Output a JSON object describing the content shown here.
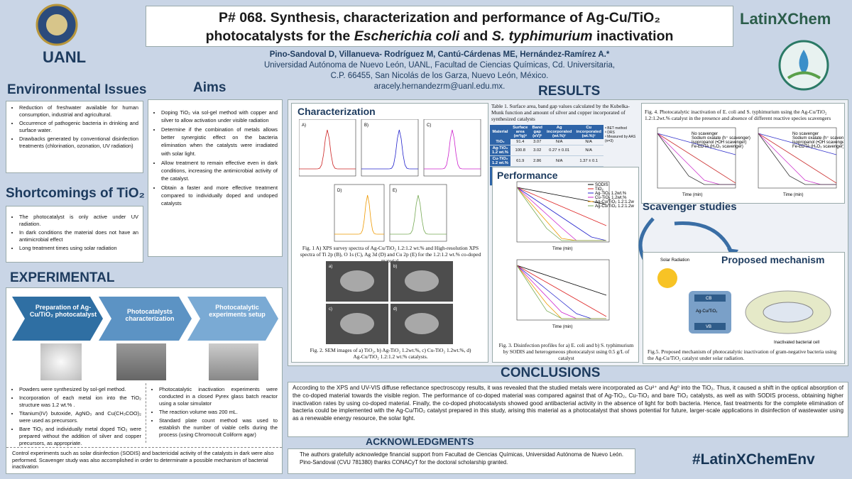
{
  "header": {
    "logo_left": "UANL",
    "title_line1": "P# 068. Synthesis, characterization and performance of Ag-Cu/TiO₂",
    "title_line2_a": "photocatalysts for the ",
    "title_line2_italic1": "Escherichia coli",
    "title_line2_b": " and ",
    "title_line2_italic2": "S. typhimurium",
    "title_line2_c": " inactivation",
    "authors": "Pino-Sandoval D, Villanueva- Rodríguez M, Cantú-Cárdenas ME, Hernández-Ramírez A.*",
    "affiliation_1": "Universidad Autónoma de Nuevo León, UANL, Facultad de Ciencias Químicas, Cd. Universitaria,",
    "affiliation_2": "C.P. 66455, San Nicolás de los Garza, Nuevo León, México.",
    "email": "aracely.hernandezrm@uanl.edu.mx.",
    "logo_right": "LatinXChem"
  },
  "environmental": {
    "heading": "Environmental Issues",
    "items": [
      "Reduction of freshwater available for human consumption, industrial and agricultural.",
      "Occurrence of pathogenic bacteria in drinking and surface water.",
      "Drawbacks generated by conventional disinfection treatments (chlorination, ozonation, UV radiation)"
    ]
  },
  "shortcomings": {
    "heading": "Shortcomings of TiO₂",
    "items": [
      "The photocatalyst is only active under UV radiation.",
      "In dark conditions the material does not have an antimicrobial effect",
      "Long treatment times using solar radiation"
    ]
  },
  "aims": {
    "heading": "Aims",
    "items": [
      "Doping TiO₂ via sol-gel method with copper and silver to allow activation under visible radiation",
      "Determine if the combination of metals allows better synergistic effect on the bacteria elimination when the catalysts were irradiated with solar light.",
      "Allow treatment to remain effective even in dark conditions, increasing the antimicrobial activity of the catalyst.",
      "Obtain a faster and more effective treatment compared to individually doped and undoped catalysts"
    ]
  },
  "experimental": {
    "heading": "EXPERIMENTAL",
    "steps": [
      "Preparation of Ag-Cu/TiO₂ photocatalyst",
      "Photocatalysts characterization",
      "Photocatalytic experiments setup"
    ],
    "left_items": [
      "Powders were synthesized by sol-gel method.",
      "Incorporation of each metal ion into the TiO₂ structure was 1.2 wt.% .",
      "Titanium(IV) butoxide, AgNO₃ and Cu(CH₃COO)₂ were used as precursors.",
      "Bare TiO₂ and individually metal doped TiO₂ were prepared without the addition of silver and copper precursors, as appropriate."
    ],
    "right_items": [
      "Photocatalytic inactivation experiments were conducted in a closed Pyrex glass batch reactor using a solar simulator",
      "The reaction volume was 200 mL.",
      "Standard plate count method was used to establish the number of viable cells during the process (using Chromocult Coliform agar)"
    ],
    "footer": "Control experiments such as solar disinfection (SODIS) and bactericidal activity of the catalysts in dark were also performed. Scavenger study was also accomplished in order to determinate a possible mechanism of bacterial inactivation"
  },
  "results": {
    "heading": "RESULTS",
    "characterization": "Characterization",
    "performance": "Performance",
    "scavenger": "Scavenger studies",
    "mechanism": "Proposed mechanism",
    "fig1_panels": [
      "A)",
      "B)",
      "C)",
      "D)",
      "E)"
    ],
    "fig1_caption": "Fig. 1  A) XPS survey spectra of Ag-Cu/TiO₂ 1.2:1.2 wt.% and High-resolution XPS spectra of Ti 2p (B), O 1s (C), Ag 3d (D) and Cu 2p (E) for the 1.2:1.2 wt.% co-doped material.",
    "fig2_panels": [
      "a)",
      "b)",
      "c)",
      "d)"
    ],
    "fig2_caption": "Fig. 2. SEM images of a) TiO₂, b) Ag-TiO₂ 1.2wt.%, c) Cu-TiO₂ 1.2wt.%, d) Ag-Cu/TiO₂ 1.2:1.2 wt.% catalysts.",
    "table": {
      "caption": "Table 1. Surface area, band gap values calculated by the Kubelka-Munk function and amount of silver and copper incorporated of synthesized catalysts",
      "header": [
        "Material",
        "Surface area (m²/g)ᵃ",
        "Band gap (eV)ᵇ",
        "Ag incorporated (wt.%)ᶜ",
        "Cu incorporated (wt.%)ᶜ"
      ],
      "rows": [
        [
          "TiO₂",
          "91.4",
          "3.07",
          "N/A",
          "N/A"
        ],
        [
          "Ag-TiO₂ 1.2 wt.%",
          "100.8",
          "3.02",
          "0.27 ± 0.01",
          "N/A"
        ],
        [
          "Cu-TiO₂ 1.2 wt.%",
          "61.9",
          "2.86",
          "N/A",
          "1.37 ± 0.1"
        ],
        [
          "Ag-Cu/TiO₂ 1.2:1.2 wt.%",
          "57.0",
          "2.84",
          "0.33 ± 0.02",
          "1.44 ± 0.02"
        ]
      ],
      "notes": [
        "ᵃ BET method",
        "ᵇ DRS",
        "ᶜ Measured by AAS (n=3)"
      ]
    },
    "fig3_legend": [
      "SODIS",
      "TiO₂",
      "Ag-TiO₂ 1.2wt.%",
      "Cu-TiO₂ 1.2wt.%",
      "Ag-Cu/TiO₂ 1.2:1.2wt.%",
      "Ag-Cu/TiO₂ 1.2:1.2wt.% + dark"
    ],
    "time_label": "Time (min)",
    "fig3_caption": "Fig. 3. Disinfection profiles for a) E. coli and b) S. typhimurium by SODIS and heterogeneous photocatalyst using 0.5 g/L of catalyst",
    "fig4_caption": "Fig. 4. Photocatalytic inactivation of E. coli and S. typhimurium using the Ag-Cu/TiO₂ 1.2:1.2wt.% catalyst in the presence and absence of different reactive species scavengers",
    "fig4_legend": [
      "No scavenger",
      "Sodium oxalate (h⁺ scavenger)",
      "Isopropanol (•OH scavenger)",
      "Fe-EDTA (H₂O₂ scavenger)"
    ],
    "fig5_labels": [
      "Solar Radiation",
      "CB",
      "VB",
      "Ag-Cu/TiO₂",
      "Inactivated bacterial cell"
    ],
    "fig5_caption": "Fig.5. Proposed mechanism of photocatalytic inactivation of gram-negative bacteria using the Ag-Cu/TiO₂ catalyst under solar radiation."
  },
  "conclusions": {
    "heading": "CONCLUSIONS",
    "text": "According to the XPS and UV-VIS diffuse reflectance spectroscopy results, it was revealed that the studied metals were incorporated as Cu²⁺ and Ag⁰ into the TiO₂. Thus, it caused a shift in the optical absorption of the co-doped material towards the visible region. The performance of co-doped material was compared against that of Ag-TiO₂, Cu-TiO₂ and bare TiO₂ catalysts, as well as with SODIS process, obtaining higher inactivation rates by using co-doped material. Finally, the co-doped photocatalysts showed good antibacterial activity in the absence of light for both bacteria. Hence, fast treatments for the complete elimination of bacteria could be implemented with the Ag-Cu/TiO₂ catalyst prepared in this study, arising this material as a photocatalyst that shows potential for future, larger-scale applications in disinfection of wastewater using as a renewable energy resource, the solar light."
  },
  "acknowledgments": {
    "heading": "ACKNOWLEDGMENTS",
    "text": "The authors gratefully acknowledge financial support from Facultad de Ciencias Químicas, Universidad Autónoma de Nuevo León. Pino-Sandoval (CVU 781380) thanks CONACyT for the doctoral scholarship granted."
  },
  "hashtag": "#LatinXChemEnv"
}
